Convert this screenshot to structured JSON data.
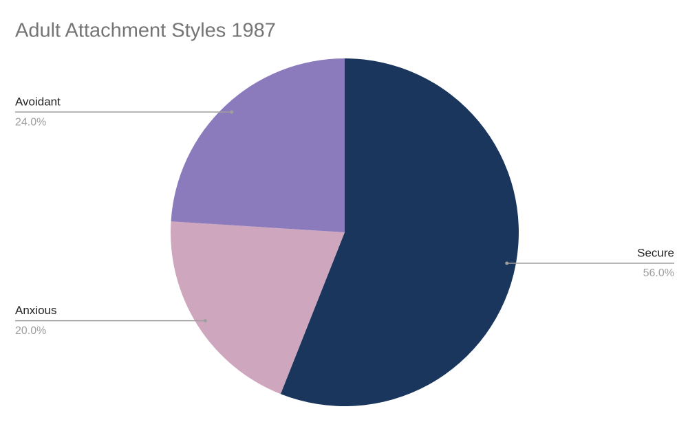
{
  "chart_data": {
    "type": "pie",
    "title": "Adult Attachment Styles 1987",
    "categories": [
      "Secure",
      "Anxious",
      "Avoidant"
    ],
    "values": [
      56.0,
      20.0,
      24.0
    ],
    "value_labels": [
      "56.0%",
      "20.0%",
      "24.0%"
    ],
    "colors": [
      "#1a365d",
      "#cea7bf",
      "#8b7bbd"
    ]
  }
}
